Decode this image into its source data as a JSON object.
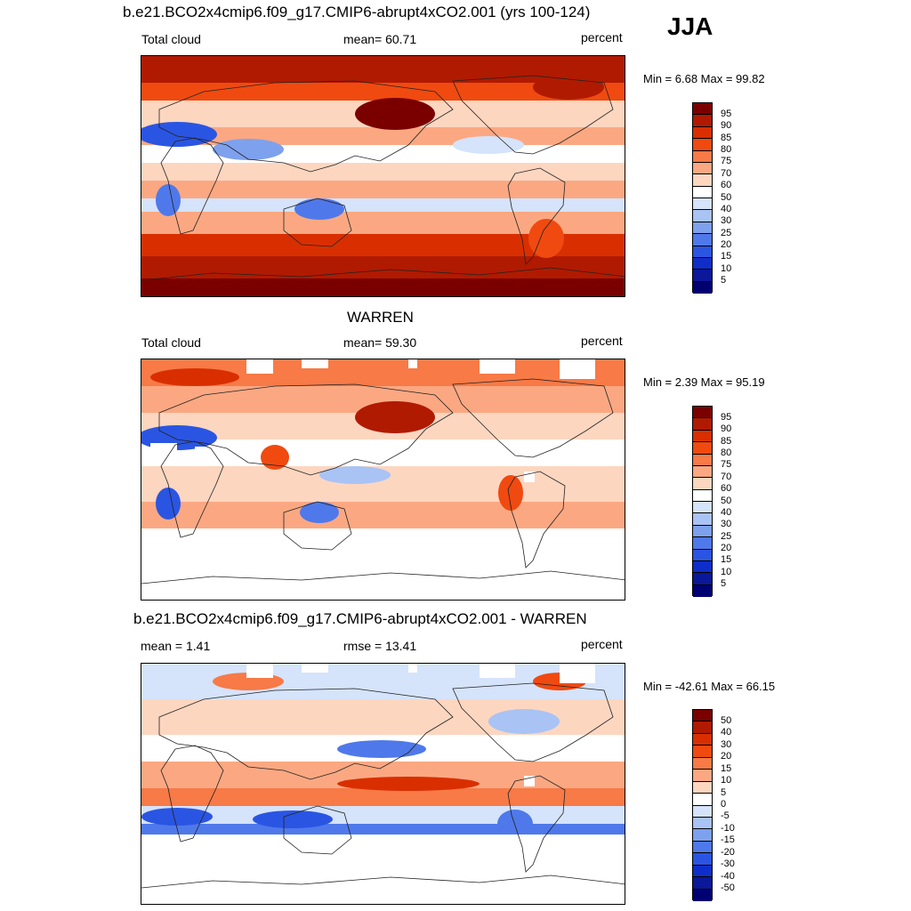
{
  "season": "JJA",
  "panels": [
    {
      "heading": "b.e21.BCO2x4cmip6.f09_g17.CMIP6-abrupt4xCO2.001 (yrs 100-124)",
      "left_label": "Total cloud",
      "center_label": "mean=  60.71",
      "units": "percent",
      "minmax": "Min =   6.68 Max =  99.82",
      "colorbar": {
        "labels": [
          "95",
          "90",
          "85",
          "80",
          "75",
          "70",
          "60",
          "50",
          "40",
          "30",
          "25",
          "20",
          "15",
          "10",
          "5"
        ],
        "colors": [
          "#7a0000",
          "#b01a00",
          "#d92f00",
          "#f04a10",
          "#f77a47",
          "#fba882",
          "#fdd6c0",
          "#ffffff",
          "#d5e3fb",
          "#a9c3f5",
          "#7ea1ee",
          "#4f79ea",
          "#2a55e3",
          "#0f2ec9",
          "#0a1899",
          "#000070"
        ]
      },
      "data_gaps": false
    },
    {
      "heading": "WARREN",
      "left_label": "Total cloud",
      "center_label": "mean=  59.30",
      "units": "percent",
      "minmax": "Min =   2.39 Max =  95.19",
      "colorbar": {
        "labels": [
          "95",
          "90",
          "85",
          "80",
          "75",
          "70",
          "60",
          "50",
          "40",
          "30",
          "25",
          "20",
          "15",
          "10",
          "5"
        ],
        "colors": [
          "#7a0000",
          "#b01a00",
          "#d92f00",
          "#f04a10",
          "#f77a47",
          "#fba882",
          "#fdd6c0",
          "#ffffff",
          "#d5e3fb",
          "#a9c3f5",
          "#7ea1ee",
          "#4f79ea",
          "#2a55e3",
          "#0f2ec9",
          "#0a1899",
          "#000070"
        ]
      },
      "data_gaps": true
    },
    {
      "heading": "b.e21.BCO2x4cmip6.f09_g17.CMIP6-abrupt4xCO2.001 - WARREN",
      "left_label": "mean =   1.41",
      "center_label": "rmse =  13.41",
      "units": "percent",
      "minmax": "Min = -42.61 Max =  66.15",
      "colorbar": {
        "labels": [
          "50",
          "40",
          "30",
          "20",
          "15",
          "10",
          "5",
          "0",
          "-5",
          "-10",
          "-15",
          "-20",
          "-30",
          "-40",
          "-50"
        ],
        "colors": [
          "#7a0000",
          "#b01a00",
          "#d92f00",
          "#f04a10",
          "#f77a47",
          "#fba882",
          "#fdd6c0",
          "#ffffff",
          "#d5e3fb",
          "#a9c3f5",
          "#7ea1ee",
          "#4f79ea",
          "#2a55e3",
          "#0f2ec9",
          "#0a1899",
          "#000070"
        ]
      },
      "data_gaps": true
    }
  ]
}
